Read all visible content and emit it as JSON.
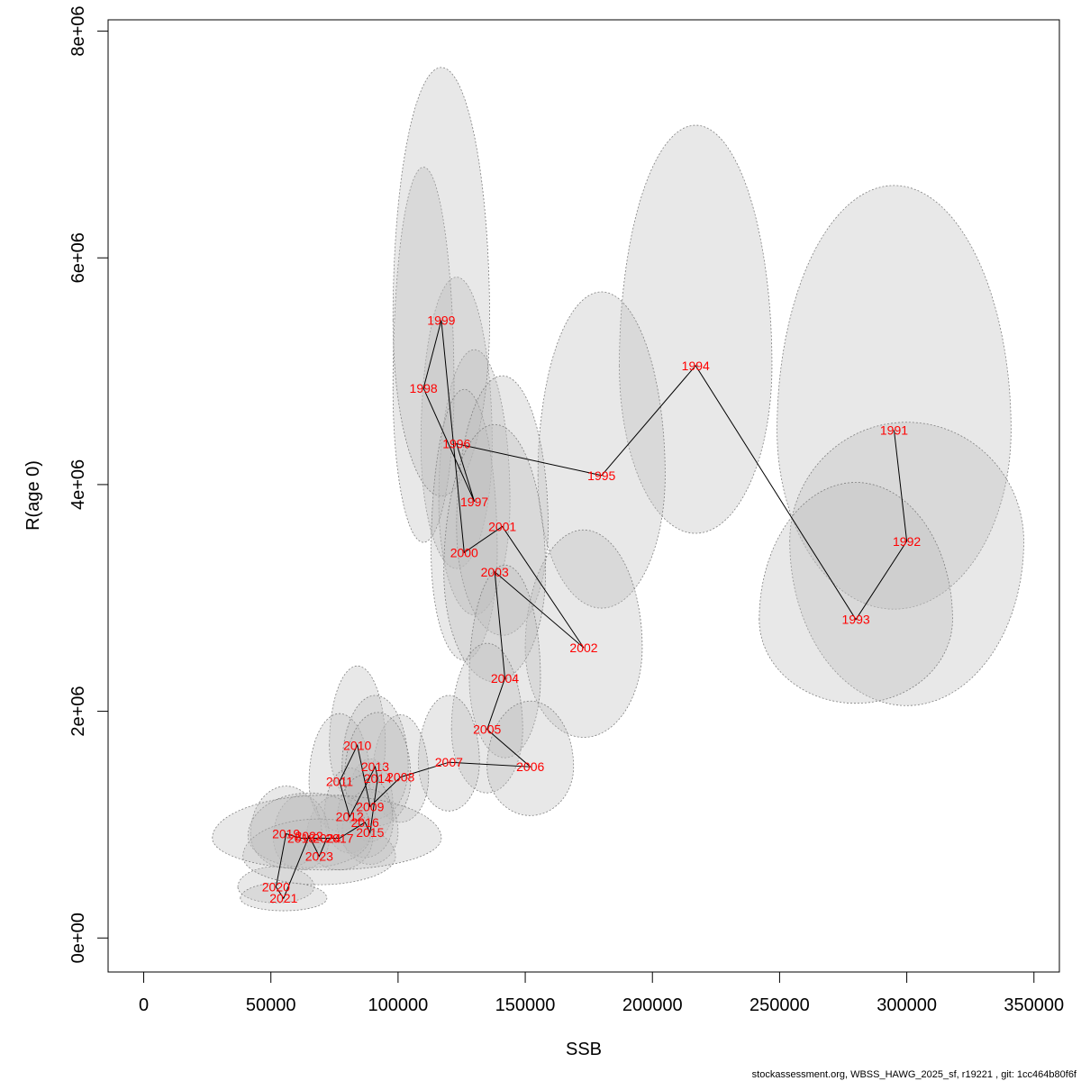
{
  "chart_data": {
    "type": "scatter",
    "title": "",
    "xlabel": "SSB",
    "ylabel": "R(age 0)",
    "xlim": [
      -14000,
      360000
    ],
    "ylim": [
      -300000,
      8100000
    ],
    "x_ticks": [
      0,
      50000,
      100000,
      150000,
      200000,
      250000,
      300000,
      350000
    ],
    "x_tick_labels": [
      "0",
      "50000",
      "100000",
      "150000",
      "200000",
      "250000",
      "300000",
      "350000"
    ],
    "y_ticks": [
      0,
      2000000,
      4000000,
      6000000,
      8000000
    ],
    "y_tick_labels": [
      "0e+00",
      "2e+06",
      "4e+06",
      "6e+06",
      "8e+06"
    ],
    "label_color": "#ff0000",
    "ellipse_fill": "#bebebe",
    "ellipse_stroke": "#808080",
    "line_color": "#000000",
    "points": [
      {
        "year": "1991",
        "ssb": 295000,
        "rec": 4480000,
        "ex": 46000,
        "ey_top": 2160000,
        "ey_bot": 1580000
      },
      {
        "year": "1992",
        "ssb": 300000,
        "rec": 3500000,
        "ex": 46000,
        "ey_top": 1050000,
        "ey_bot": 1450000
      },
      {
        "year": "1993",
        "ssb": 280000,
        "rec": 2810000,
        "ex": 38000,
        "ey_top": 1210000,
        "ey_bot": 740000
      },
      {
        "year": "1994",
        "ssb": 217000,
        "rec": 5050000,
        "ex": 30000,
        "ey_top": 2120000,
        "ey_bot": 1480000
      },
      {
        "year": "1995",
        "ssb": 180000,
        "rec": 4080000,
        "ex": 25000,
        "ey_top": 1620000,
        "ey_bot": 1170000
      },
      {
        "year": "1996",
        "ssb": 123000,
        "rec": 4360000,
        "ex": 14000,
        "ey_top": 1470000,
        "ey_bot": 1100000
      },
      {
        "year": "1997",
        "ssb": 130000,
        "rec": 3850000,
        "ex": 14000,
        "ey_top": 1340000,
        "ey_bot": 1000000
      },
      {
        "year": "1998",
        "ssb": 110000,
        "rec": 4850000,
        "ex": 12000,
        "ey_top": 1950000,
        "ey_bot": 1360000
      },
      {
        "year": "1999",
        "ssb": 117000,
        "rec": 5450000,
        "ex": 19000,
        "ey_top": 2230000,
        "ey_bot": 1550000
      },
      {
        "year": "2000",
        "ssb": 126000,
        "rec": 3400000,
        "ex": 13000,
        "ey_top": 1440000,
        "ey_bot": 950000
      },
      {
        "year": "2001",
        "ssb": 141000,
        "rec": 3630000,
        "ex": 18000,
        "ey_top": 1330000,
        "ey_bot": 960000
      },
      {
        "year": "2002",
        "ssb": 173000,
        "rec": 2560000,
        "ex": 23000,
        "ey_top": 1040000,
        "ey_bot": 790000
      },
      {
        "year": "2003",
        "ssb": 138000,
        "rec": 3230000,
        "ex": 20000,
        "ey_top": 1300000,
        "ey_bot": 970000
      },
      {
        "year": "2004",
        "ssb": 142000,
        "rec": 2290000,
        "ex": 14000,
        "ey_top": 1000000,
        "ey_bot": 700000
      },
      {
        "year": "2005",
        "ssb": 135000,
        "rec": 1840000,
        "ex": 14000,
        "ey_top": 760000,
        "ey_bot": 560000
      },
      {
        "year": "2006",
        "ssb": 152000,
        "rec": 1510000,
        "ex": 17000,
        "ey_top": 580000,
        "ey_bot": 430000
      },
      {
        "year": "2007",
        "ssb": 120000,
        "rec": 1550000,
        "ex": 12000,
        "ey_top": 590000,
        "ey_bot": 430000
      },
      {
        "year": "2008",
        "ssb": 101000,
        "rec": 1420000,
        "ex": 11000,
        "ey_top": 550000,
        "ey_bot": 400000
      },
      {
        "year": "2009",
        "ssb": 89000,
        "rec": 1160000,
        "ex": 9000,
        "ey_top": 420000,
        "ey_bot": 310000
      },
      {
        "year": "2010",
        "ssb": 84000,
        "rec": 1700000,
        "ex": 11000,
        "ey_top": 700000,
        "ey_bot": 500000
      },
      {
        "year": "2011",
        "ssb": 77000,
        "rec": 1380000,
        "ex": 12000,
        "ey_top": 600000,
        "ey_bot": 440000
      },
      {
        "year": "2012",
        "ssb": 81000,
        "rec": 1070000,
        "ex": 10000,
        "ey_top": 430000,
        "ey_bot": 320000
      },
      {
        "year": "2013",
        "ssb": 91000,
        "rec": 1510000,
        "ex": 13000,
        "ey_top": 630000,
        "ey_bot": 460000
      },
      {
        "year": "2014",
        "ssb": 92000,
        "rec": 1410000,
        "ex": 13000,
        "ey_top": 580000,
        "ey_bot": 420000
      },
      {
        "year": "2015",
        "ssb": 89000,
        "rec": 930000,
        "ex": 11000,
        "ey_top": 380000,
        "ey_bot": 280000
      },
      {
        "year": "2016",
        "ssb": 87000,
        "rec": 1020000,
        "ex": 11000,
        "ey_top": 420000,
        "ey_bot": 310000
      },
      {
        "year": "2017",
        "ssb": 77000,
        "rec": 880000,
        "ex": 13000,
        "ey_top": 380000,
        "ey_bot": 280000
      },
      {
        "year": "2018",
        "ssb": 62000,
        "rec": 880000,
        "ex": 11000,
        "ey_top": 380000,
        "ey_bot": 280000
      },
      {
        "year": "2019",
        "ssb": 56000,
        "rec": 920000,
        "ex": 14000,
        "ey_top": 420000,
        "ey_bot": 300000
      },
      {
        "year": "2020",
        "ssb": 52000,
        "rec": 450000,
        "ex": 15000,
        "ey_top": 180000,
        "ey_bot": 140000
      },
      {
        "year": "2021",
        "ssb": 55000,
        "rec": 350000,
        "ex": 17000,
        "ey_top": 140000,
        "ey_bot": 110000
      },
      {
        "year": "2022",
        "ssb": 65000,
        "rec": 900000,
        "ex": 24000,
        "ey_top": 380000,
        "ey_bot": 280000
      },
      {
        "year": "2023",
        "ssb": 69000,
        "rec": 720000,
        "ex": 30000,
        "ey_top": 330000,
        "ey_bot": 250000
      },
      {
        "year": "2024",
        "ssb": 72000,
        "rec": 880000,
        "ex": 45000,
        "ey_top": 380000,
        "ey_bot": 280000
      }
    ]
  },
  "footer": "stockassessment.org, WBSS_HAWG_2025_sf, r19221 , git: 1cc464b80f6f"
}
